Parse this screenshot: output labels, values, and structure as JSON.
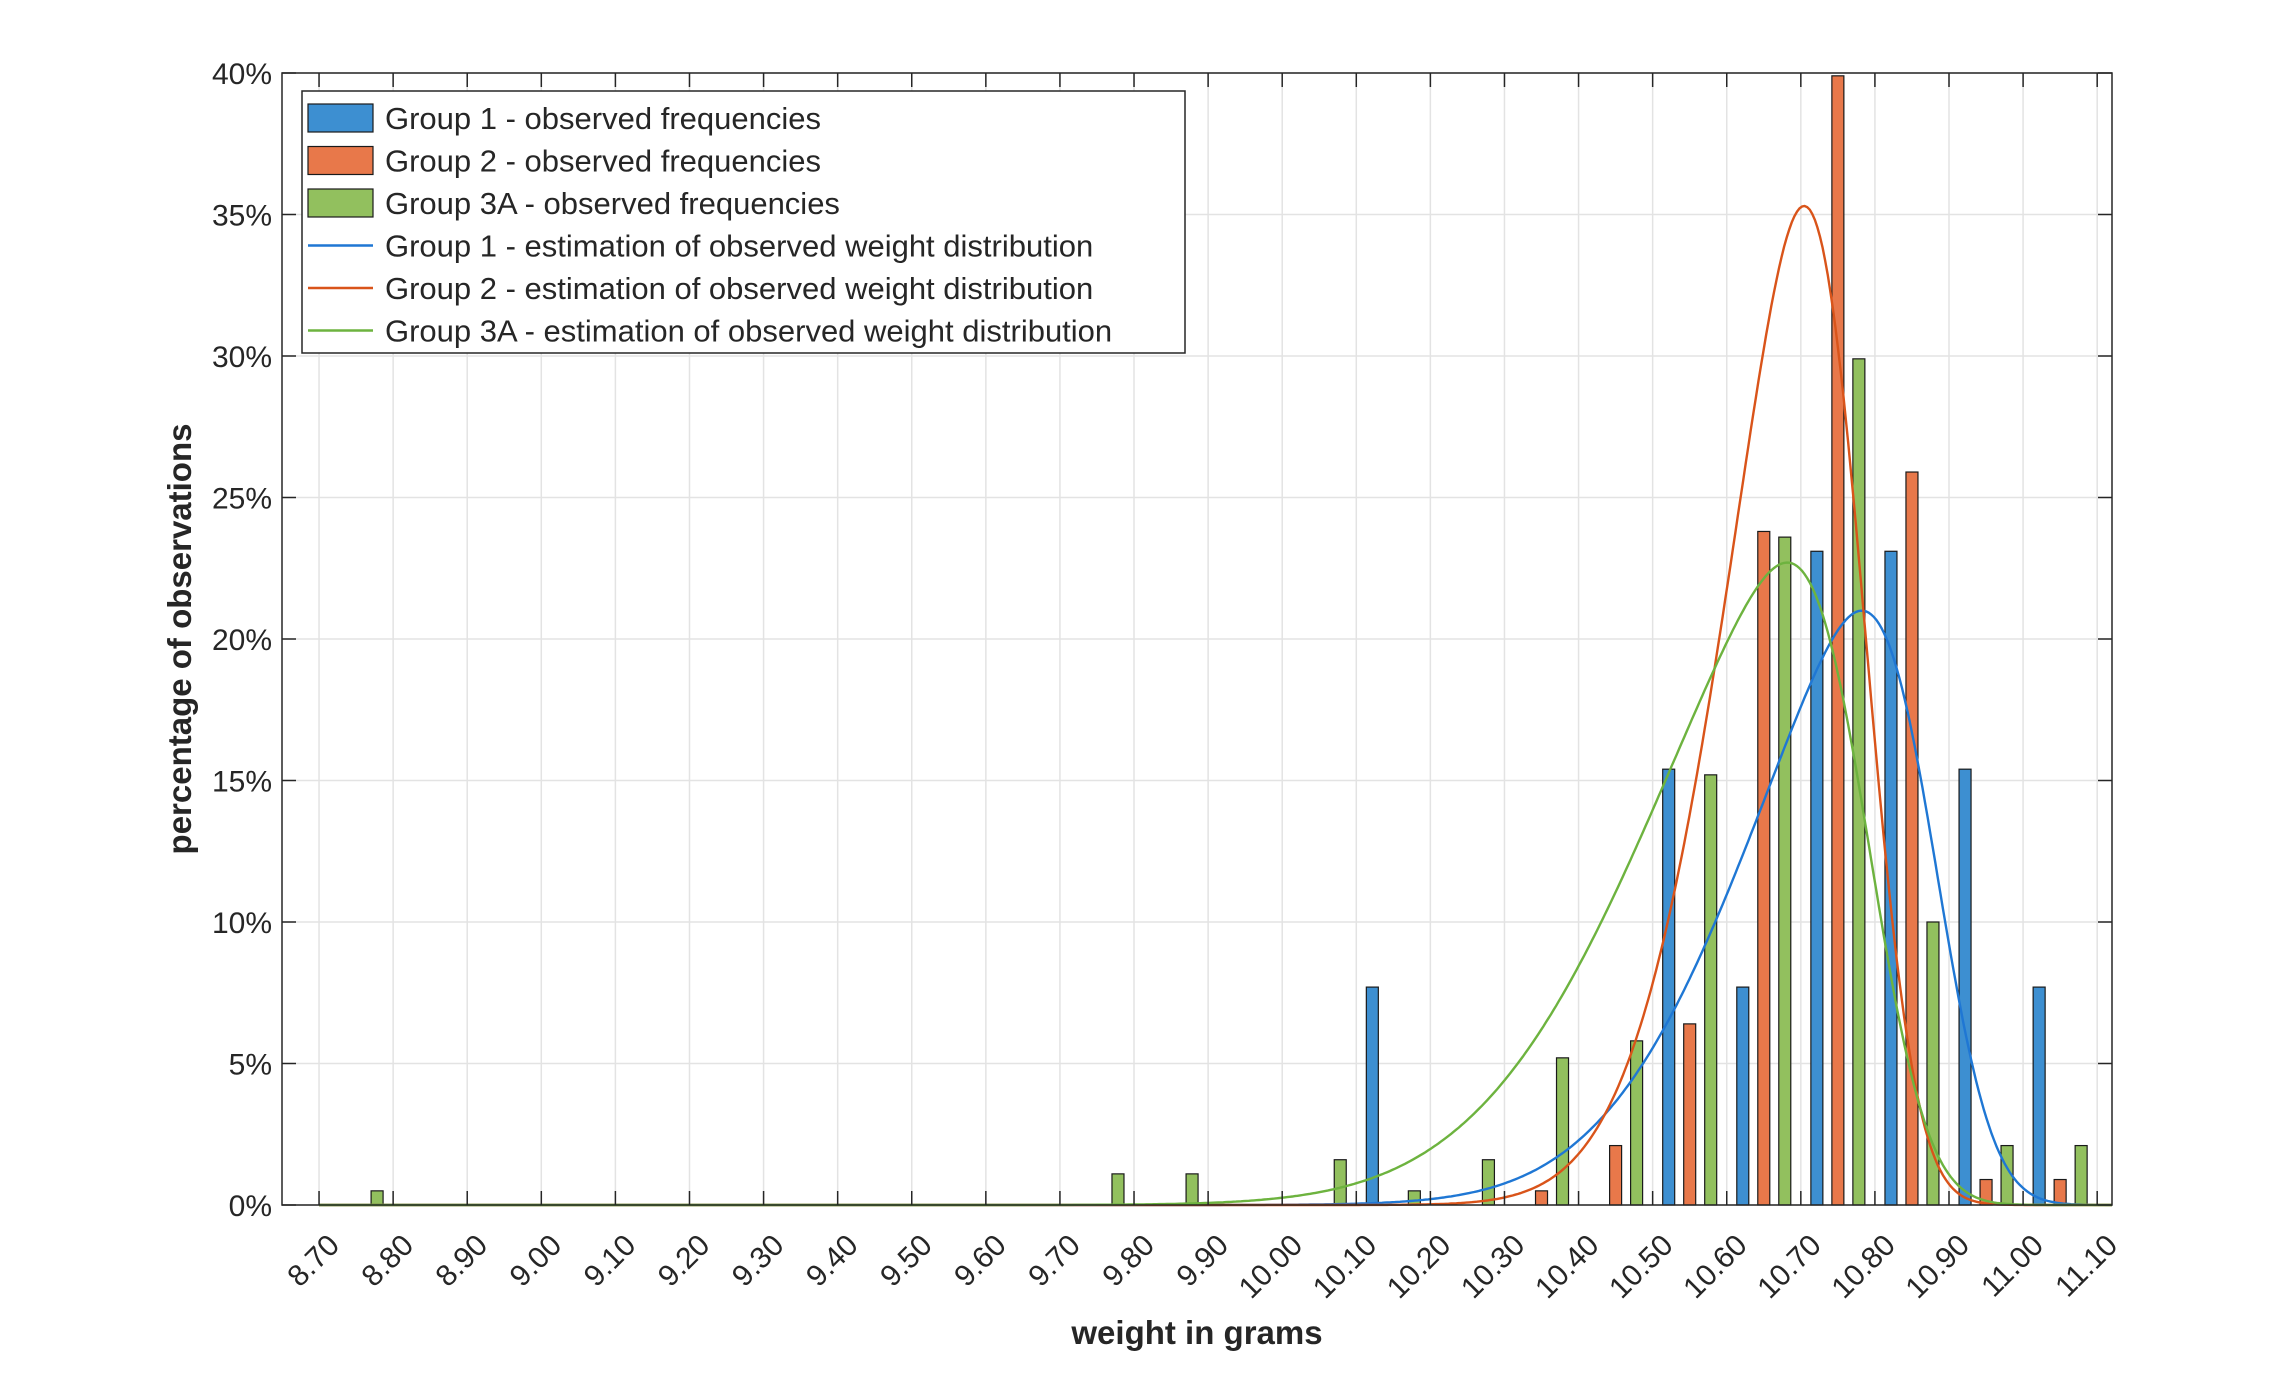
{
  "chart_data": {
    "type": "bar",
    "title": "",
    "xlabel": "weight in grams",
    "ylabel": "percentage of observations",
    "xlim": [
      8.65,
      11.12
    ],
    "ylim": [
      0,
      40
    ],
    "x_ticks": [
      "8.70",
      "8.80",
      "8.90",
      "9.00",
      "9.10",
      "9.20",
      "9.30",
      "9.40",
      "9.50",
      "9.60",
      "9.70",
      "9.80",
      "9.90",
      "10.00",
      "10.10",
      "10.20",
      "10.30",
      "10.40",
      "10.50",
      "10.60",
      "10.70",
      "10.80",
      "10.90",
      "11.00",
      "11.10"
    ],
    "y_ticks": [
      "0%",
      "5%",
      "10%",
      "15%",
      "20%",
      "25%",
      "30%",
      "35%",
      "40%"
    ],
    "grid": true,
    "legend_position": "top-left",
    "series": [
      {
        "name": "Group 1 - observed frequencies",
        "kind": "bar",
        "color": "#3d8fd1",
        "points": [
          [
            10.1,
            7.7
          ],
          [
            10.5,
            15.4
          ],
          [
            10.6,
            7.7
          ],
          [
            10.7,
            23.1
          ],
          [
            10.8,
            23.1
          ],
          [
            10.9,
            15.4
          ],
          [
            11.0,
            7.7
          ]
        ]
      },
      {
        "name": "Group 2 - observed frequencies",
        "kind": "bar",
        "color": "#e8784a",
        "points": [
          [
            10.3,
            0.5
          ],
          [
            10.4,
            2.1
          ],
          [
            10.5,
            6.4
          ],
          [
            10.6,
            23.8
          ],
          [
            10.7,
            39.9
          ],
          [
            10.8,
            25.9
          ],
          [
            10.9,
            0.9
          ],
          [
            11.0,
            0.9
          ]
        ]
      },
      {
        "name": "Group 3A - observed frequencies",
        "kind": "bar",
        "color": "#92c05e",
        "points": [
          [
            8.7,
            0.5
          ],
          [
            9.7,
            1.1
          ],
          [
            9.8,
            1.1
          ],
          [
            10.0,
            1.6
          ],
          [
            10.1,
            0.5
          ],
          [
            10.2,
            1.6
          ],
          [
            10.3,
            5.2
          ],
          [
            10.4,
            5.8
          ],
          [
            10.5,
            15.2
          ],
          [
            10.6,
            23.6
          ],
          [
            10.7,
            29.9
          ],
          [
            10.8,
            10.0
          ],
          [
            10.9,
            2.1
          ],
          [
            11.0,
            2.1
          ]
        ]
      },
      {
        "name": "Group 1 - estimation of observed weight distribution",
        "kind": "line",
        "color": "#1f77d4",
        "model": "skew-normal",
        "location": 10.88,
        "scale": 0.22,
        "shape": -3.5,
        "peak_percent": 21
      },
      {
        "name": "Group 2 - estimation of observed weight distribution",
        "kind": "line",
        "color": "#d9541a",
        "model": "skew-normal",
        "location": 10.78,
        "scale": 0.15,
        "shape": -2.5,
        "peak_percent": 35.3
      },
      {
        "name": "Group 3A - estimation of observed weight distribution",
        "kind": "line",
        "color": "#6db33f",
        "model": "skew-normal",
        "location": 10.79,
        "scale": 0.26,
        "shape": -4.0,
        "peak_percent": 22.7
      }
    ]
  }
}
